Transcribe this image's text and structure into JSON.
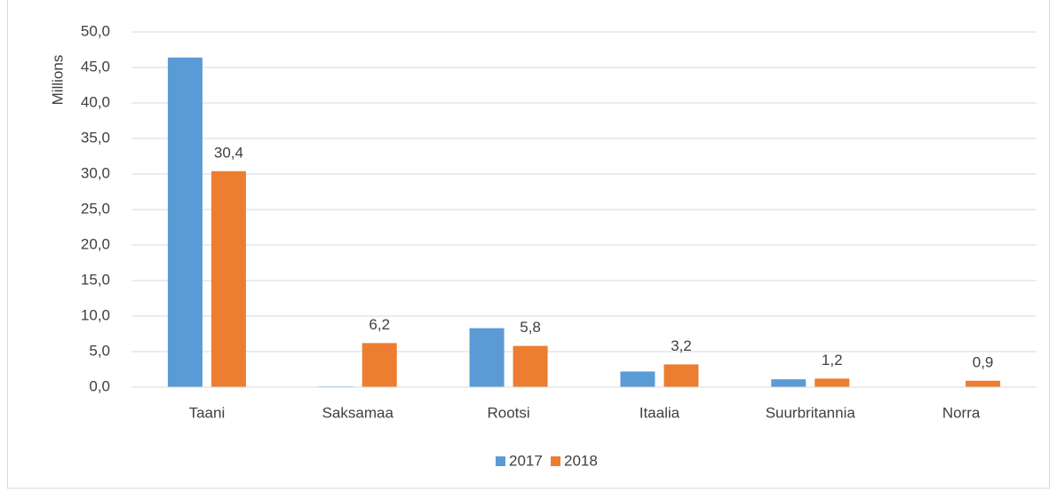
{
  "chart_data": {
    "type": "bar",
    "y_label": "Millions",
    "categories": [
      "Taani",
      "Saksamaa",
      "Rootsi",
      "Itaalia",
      "Suurbritannia",
      "Norra"
    ],
    "series": [
      {
        "name": "2017",
        "color": "#5b9bd5",
        "values": [
          46.4,
          0.1,
          8.3,
          2.2,
          1.1,
          0
        ]
      },
      {
        "name": "2018",
        "color": "#ed7d31",
        "values": [
          30.4,
          6.2,
          5.8,
          3.2,
          1.2,
          0.9
        ],
        "value_labels": [
          "30,4",
          "6,2",
          "5,8",
          "3,2",
          "1,2",
          "0,9"
        ]
      }
    ],
    "ylim": [
      0,
      50
    ],
    "yticks": [
      {
        "value": 0,
        "label": "0,0"
      },
      {
        "value": 5,
        "label": "5,0"
      },
      {
        "value": 10,
        "label": "10,0"
      },
      {
        "value": 15,
        "label": "15,0"
      },
      {
        "value": 20,
        "label": "20,0"
      },
      {
        "value": 25,
        "label": "25,0"
      },
      {
        "value": 30,
        "label": "30,0"
      },
      {
        "value": 35,
        "label": "35,0"
      },
      {
        "value": 40,
        "label": "40,0"
      },
      {
        "value": 45,
        "label": "45,0"
      },
      {
        "value": 50,
        "label": "50,0"
      }
    ],
    "grid": true,
    "legend": "bottom"
  }
}
